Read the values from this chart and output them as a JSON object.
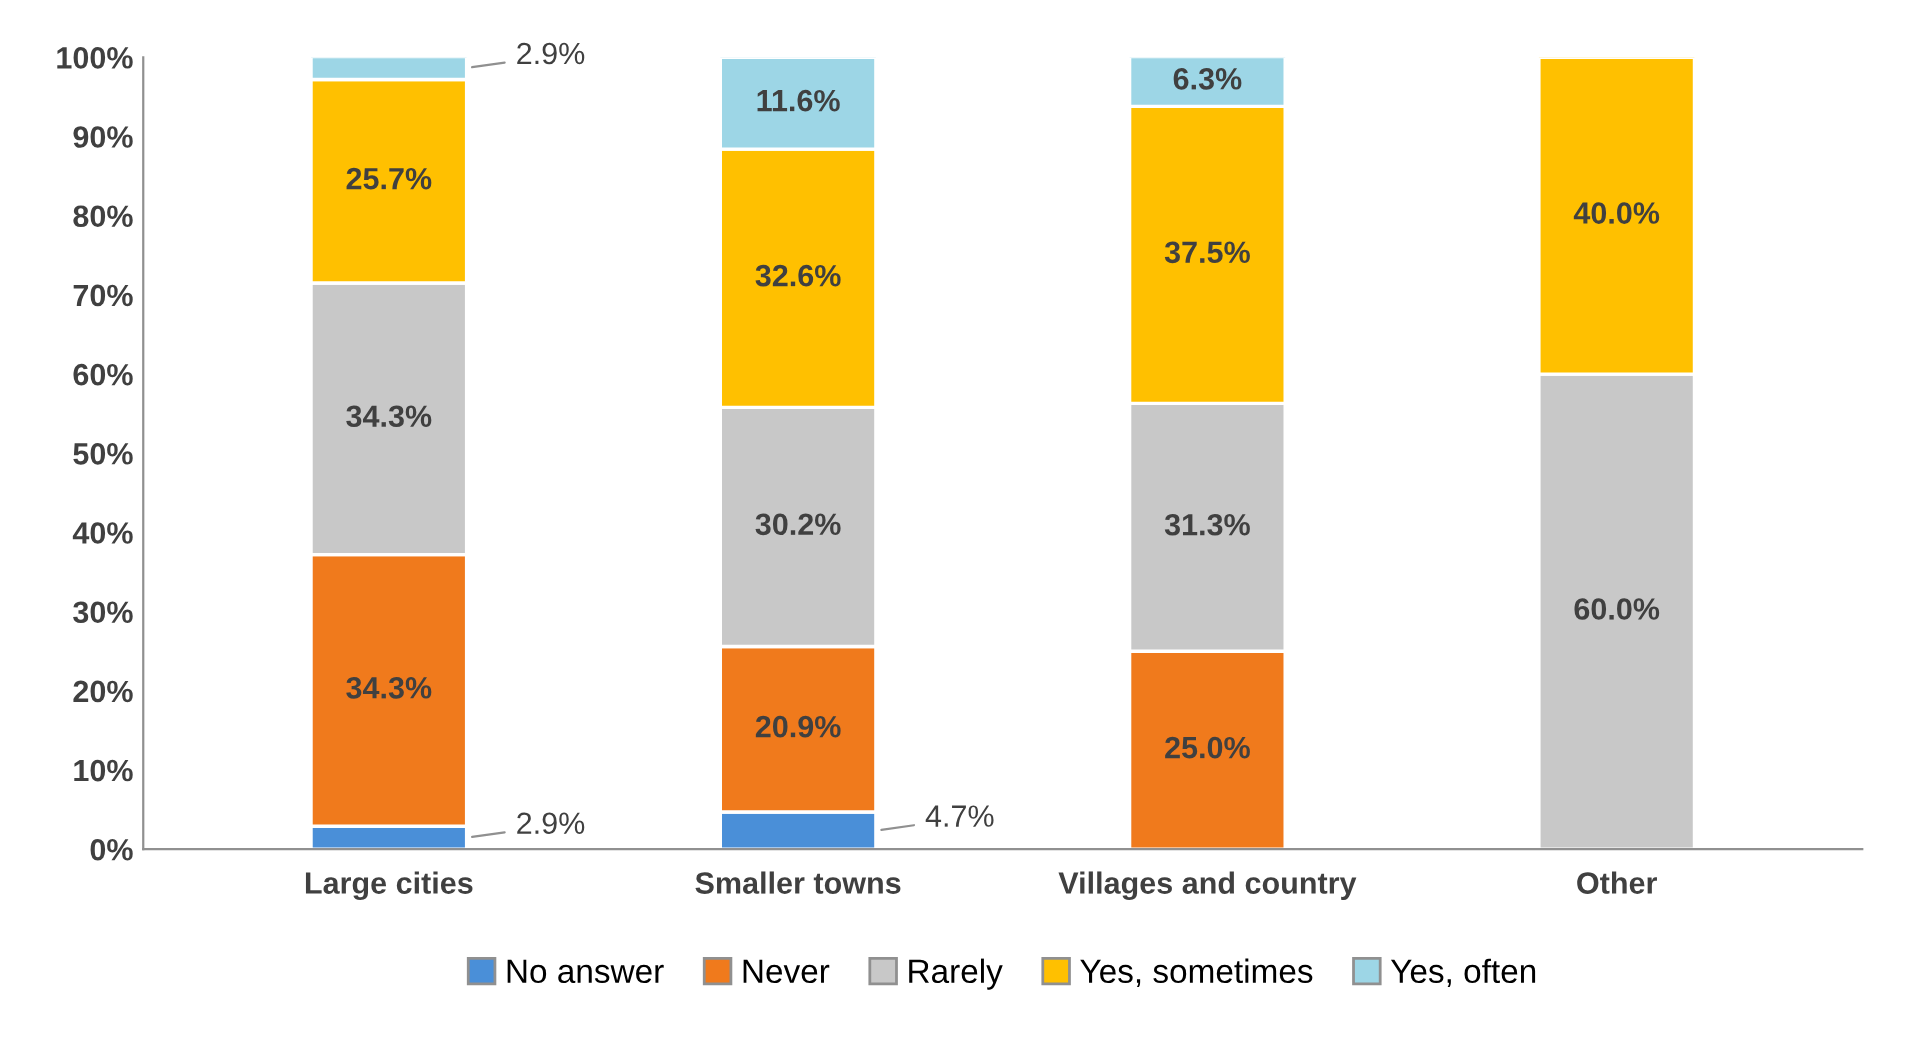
{
  "chart_data": {
    "type": "bar",
    "stacked": true,
    "categories": [
      "Large cities",
      "Smaller towns",
      "Villages and country",
      "Other"
    ],
    "series": [
      {
        "name": "No answer",
        "color": "#4a8fd8",
        "values": [
          2.9,
          4.7,
          null,
          null
        ],
        "value_labels": [
          "2.9%",
          "4.7%",
          null,
          null
        ]
      },
      {
        "name": "Never",
        "color": "#f07a1c",
        "values": [
          34.3,
          20.9,
          25.0,
          null
        ],
        "value_labels": [
          "34.3%",
          "20.9%",
          "25.0%",
          null
        ]
      },
      {
        "name": "Rarely",
        "color": "#c8c8c8",
        "values": [
          34.3,
          30.2,
          31.3,
          60.0
        ],
        "value_labels": [
          "34.3%",
          "30.2%",
          "31.3%",
          "60.0%"
        ]
      },
      {
        "name": "Yes, sometimes",
        "color": "#ffc000",
        "values": [
          25.7,
          32.6,
          37.5,
          40.0
        ],
        "value_labels": [
          "25.7%",
          "32.6%",
          "37.5%",
          "40.0%"
        ]
      },
      {
        "name": "Yes, often",
        "color": "#9dd6e6",
        "values": [
          2.9,
          11.6,
          6.3,
          null
        ],
        "value_labels": [
          "2.9%",
          "11.6%",
          "6.3%",
          null
        ]
      }
    ],
    "ylim": [
      0,
      100
    ],
    "yticks": [
      {
        "value": 0,
        "label": "0%"
      },
      {
        "value": 10,
        "label": "10%"
      },
      {
        "value": 20,
        "label": "20%"
      },
      {
        "value": 30,
        "label": "30%"
      },
      {
        "value": 40,
        "label": "40%"
      },
      {
        "value": 50,
        "label": "50%"
      },
      {
        "value": 60,
        "label": "60%"
      },
      {
        "value": 70,
        "label": "70%"
      },
      {
        "value": 80,
        "label": "80%"
      },
      {
        "value": 90,
        "label": "90%"
      },
      {
        "value": 100,
        "label": "100%"
      }
    ],
    "grid": false,
    "legend": "bottom"
  }
}
